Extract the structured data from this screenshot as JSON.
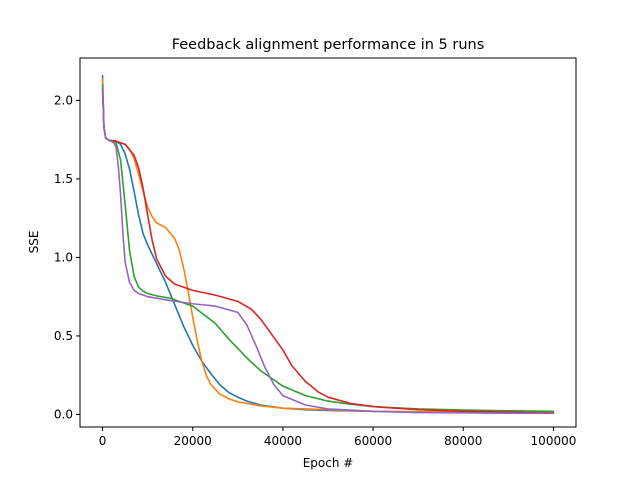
{
  "chart_data": {
    "type": "line",
    "title": "Feedback alignment performance in 5 runs",
    "xlabel": "Epoch #",
    "ylabel": "SSE",
    "xlim": [
      -5000,
      105000
    ],
    "ylim": [
      -0.08,
      2.27
    ],
    "xticks": [
      0,
      20000,
      40000,
      60000,
      80000,
      100000
    ],
    "xtick_labels": [
      "0",
      "20000",
      "40000",
      "60000",
      "80000",
      "100000"
    ],
    "yticks": [
      0.0,
      0.5,
      1.0,
      1.5,
      2.0
    ],
    "ytick_labels": [
      "0.0",
      "0.5",
      "1.0",
      "1.5",
      "2.0"
    ],
    "grid": false,
    "legend": "none",
    "series": [
      {
        "color": "#1f77b4",
        "x": [
          0,
          300,
          700,
          1500,
          3000,
          4000,
          5000,
          6000,
          7000,
          8000,
          9000,
          10000,
          12000,
          14000,
          16000,
          18000,
          20000,
          22000,
          24000,
          26000,
          28000,
          30000,
          32000,
          35000,
          40000,
          45000,
          50000,
          60000,
          70000,
          80000,
          90000,
          100000
        ],
        "y": [
          2.16,
          1.83,
          1.76,
          1.745,
          1.74,
          1.72,
          1.66,
          1.56,
          1.42,
          1.27,
          1.15,
          1.08,
          0.96,
          0.84,
          0.7,
          0.56,
          0.44,
          0.34,
          0.26,
          0.19,
          0.14,
          0.11,
          0.085,
          0.06,
          0.04,
          0.03,
          0.025,
          0.02,
          0.015,
          0.013,
          0.012,
          0.01
        ]
      },
      {
        "color": "#ff7f0e",
        "x": [
          0,
          300,
          700,
          1500,
          3000,
          5000,
          6000,
          7000,
          8000,
          9000,
          10000,
          11000,
          12000,
          14000,
          16000,
          17000,
          18000,
          19000,
          20000,
          21000,
          22000,
          23000,
          24000,
          26000,
          28000,
          30000,
          35000,
          40000,
          50000,
          60000,
          80000,
          100000
        ],
        "y": [
          2.14,
          1.83,
          1.76,
          1.745,
          1.74,
          1.72,
          1.69,
          1.63,
          1.53,
          1.42,
          1.32,
          1.26,
          1.22,
          1.19,
          1.12,
          1.05,
          0.93,
          0.78,
          0.62,
          0.47,
          0.34,
          0.25,
          0.19,
          0.13,
          0.1,
          0.08,
          0.055,
          0.04,
          0.03,
          0.02,
          0.015,
          0.012
        ]
      },
      {
        "color": "#2ca02c",
        "x": [
          0,
          300,
          700,
          1500,
          3000,
          4000,
          5000,
          6000,
          7000,
          8000,
          9000,
          10000,
          12000,
          15000,
          20000,
          25000,
          28000,
          30000,
          32000,
          35000,
          40000,
          45000,
          50000,
          55000,
          60000,
          70000,
          80000,
          90000,
          100000
        ],
        "y": [
          2.1,
          1.83,
          1.76,
          1.745,
          1.73,
          1.62,
          1.34,
          1.04,
          0.88,
          0.81,
          0.785,
          0.77,
          0.755,
          0.74,
          0.69,
          0.58,
          0.48,
          0.42,
          0.36,
          0.28,
          0.18,
          0.12,
          0.085,
          0.065,
          0.05,
          0.035,
          0.028,
          0.023,
          0.02
        ]
      },
      {
        "color": "#d62728",
        "x": [
          0,
          300,
          700,
          1500,
          3000,
          5000,
          7000,
          8000,
          9000,
          10000,
          11000,
          12000,
          14000,
          16000,
          18000,
          20000,
          25000,
          30000,
          33000,
          35000,
          37000,
          40000,
          42000,
          45000,
          48000,
          50000,
          55000,
          60000,
          70000,
          80000,
          100000
        ],
        "y": [
          2.07,
          1.83,
          1.76,
          1.745,
          1.74,
          1.72,
          1.65,
          1.57,
          1.44,
          1.27,
          1.11,
          0.99,
          0.88,
          0.83,
          0.81,
          0.79,
          0.76,
          0.72,
          0.67,
          0.61,
          0.53,
          0.41,
          0.31,
          0.21,
          0.14,
          0.11,
          0.07,
          0.05,
          0.03,
          0.02,
          0.01
        ]
      },
      {
        "color": "#9467bd",
        "x": [
          0,
          300,
          700,
          1500,
          2500,
          3000,
          3500,
          4000,
          4500,
          5000,
          6000,
          7000,
          8000,
          10000,
          15000,
          20000,
          25000,
          30000,
          32000,
          34000,
          36000,
          38000,
          40000,
          45000,
          50000,
          60000,
          70000,
          80000,
          90000,
          100000
        ],
        "y": [
          2.08,
          1.83,
          1.76,
          1.745,
          1.73,
          1.7,
          1.58,
          1.4,
          1.16,
          0.97,
          0.84,
          0.79,
          0.77,
          0.75,
          0.725,
          0.705,
          0.69,
          0.65,
          0.57,
          0.44,
          0.3,
          0.19,
          0.12,
          0.06,
          0.035,
          0.02,
          0.012,
          0.01,
          0.008,
          0.007
        ]
      }
    ]
  }
}
